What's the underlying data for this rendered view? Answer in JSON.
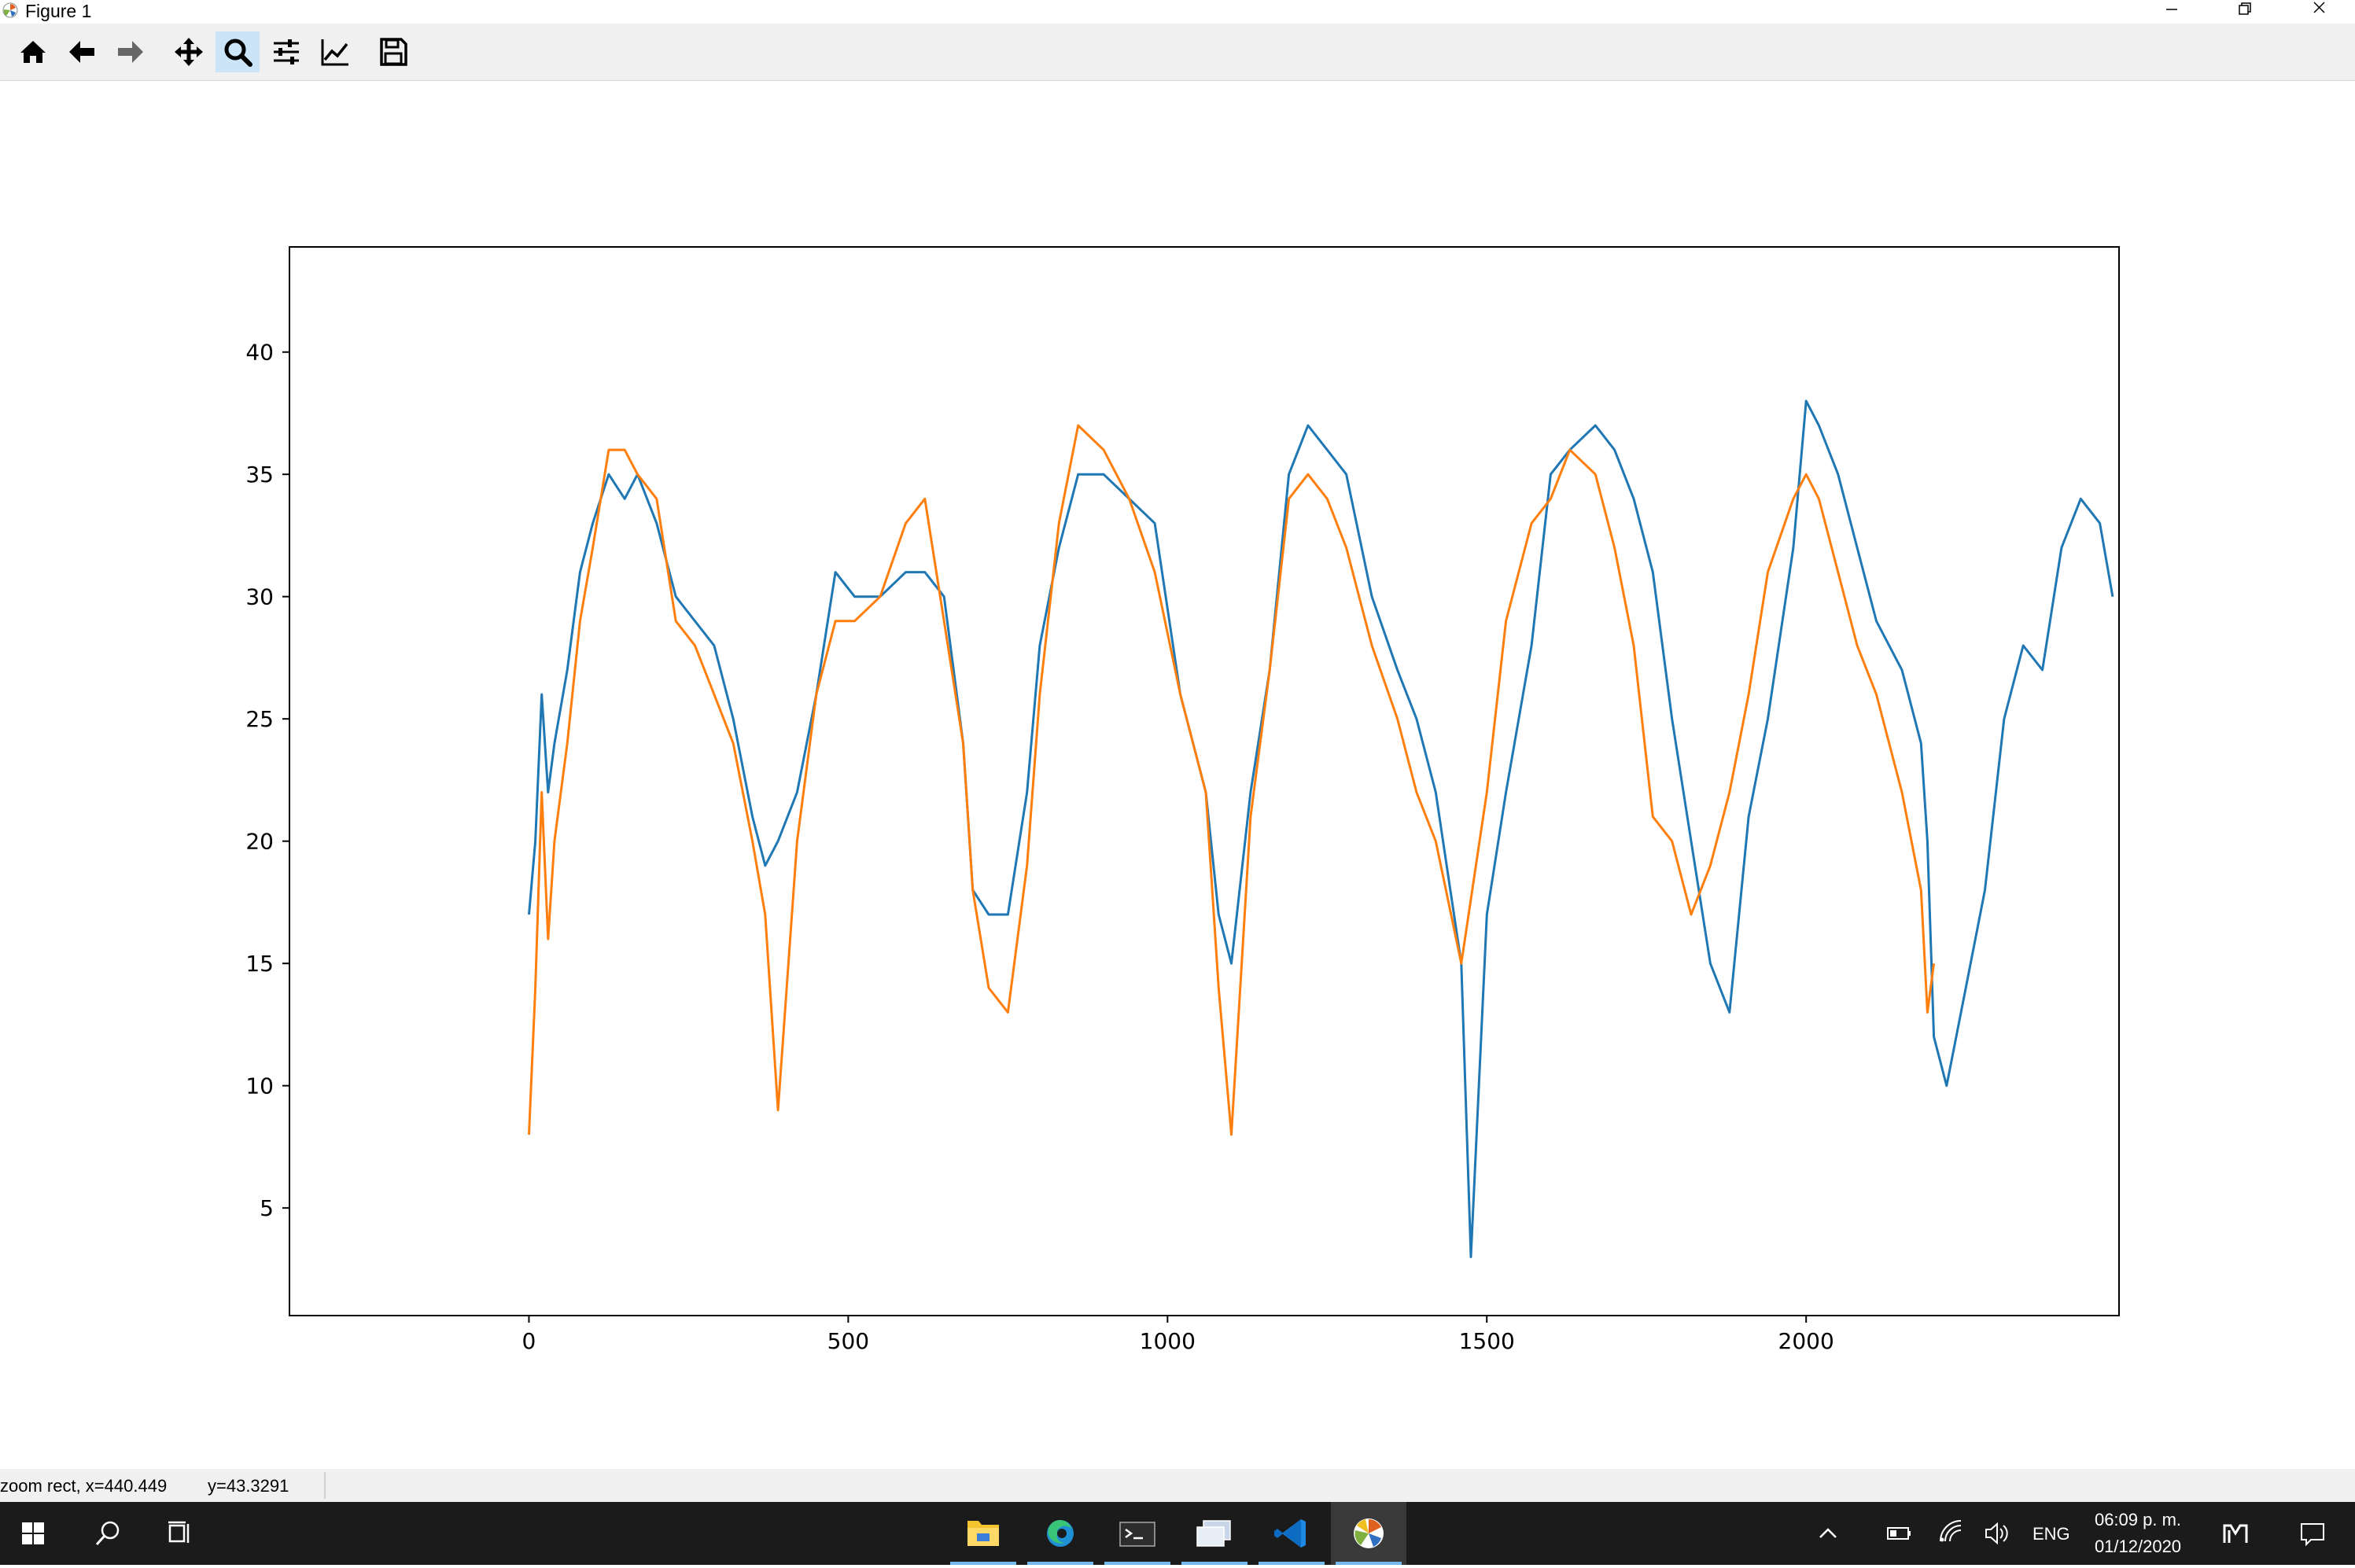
{
  "window": {
    "title": "Figure 1",
    "controls": [
      "minimize",
      "restore",
      "close"
    ]
  },
  "toolbar": {
    "buttons": [
      {
        "name": "home",
        "icon": "home-icon"
      },
      {
        "name": "back",
        "icon": "arrow-left-icon"
      },
      {
        "name": "forward",
        "icon": "arrow-right-icon"
      },
      {
        "name": "pan",
        "icon": "move-icon"
      },
      {
        "name": "zoom",
        "icon": "magnifier-icon",
        "active": true
      },
      {
        "name": "configure-subplots",
        "icon": "sliders-icon"
      },
      {
        "name": "edit-axis",
        "icon": "line-chart-icon"
      },
      {
        "name": "save",
        "icon": "floppy-disk-icon"
      }
    ]
  },
  "status": {
    "mode_x": "zoom rect, x=440.449",
    "y": "y=43.3291"
  },
  "chart_data": {
    "type": "line",
    "title": "",
    "xlabel": "",
    "ylabel": "",
    "xlim": [
      -375,
      2490
    ],
    "ylim": [
      0.6,
      44.3
    ],
    "xticks": [
      0,
      500,
      1000,
      1500,
      2000
    ],
    "yticks": [
      5,
      10,
      15,
      20,
      25,
      30,
      35,
      40
    ],
    "grid": false,
    "legend": "none",
    "series": [
      {
        "color": "#1f77b4",
        "x": [
          0,
          10,
          20,
          30,
          40,
          60,
          80,
          100,
          125,
          150,
          170,
          200,
          230,
          260,
          290,
          320,
          350,
          370,
          390,
          420,
          450,
          480,
          510,
          550,
          590,
          620,
          650,
          680,
          695,
          720,
          750,
          780,
          800,
          830,
          860,
          900,
          940,
          980,
          1020,
          1060,
          1080,
          1100,
          1130,
          1160,
          1190,
          1220,
          1250,
          1280,
          1320,
          1360,
          1390,
          1420,
          1460,
          1475,
          1500,
          1530,
          1570,
          1600,
          1630,
          1670,
          1700,
          1730,
          1760,
          1790,
          1820,
          1850,
          1880,
          1910,
          1940,
          1980,
          2000,
          2020,
          2050,
          2080,
          2110,
          2150,
          2180,
          2190,
          2200,
          2220,
          2250,
          2280,
          2310,
          2340,
          2370,
          2400,
          2430,
          2460,
          2480
        ],
        "y": [
          17,
          20,
          26,
          22,
          24,
          27,
          31,
          33,
          35,
          34,
          35,
          33,
          30,
          29,
          28,
          25,
          21,
          19,
          20,
          22,
          26,
          31,
          30,
          30,
          31,
          31,
          30,
          24,
          18,
          17,
          17,
          22,
          28,
          32,
          35,
          35,
          34,
          33,
          26,
          22,
          17,
          15,
          22,
          27,
          35,
          37,
          36,
          35,
          30,
          27,
          25,
          22,
          15,
          3,
          17,
          22,
          28,
          35,
          36,
          37,
          36,
          34,
          31,
          25,
          20,
          15,
          13,
          21,
          25,
          32,
          38,
          37,
          35,
          32,
          29,
          27,
          24,
          20,
          12,
          10,
          14,
          18,
          25,
          28,
          27,
          32,
          34,
          33,
          30
        ]
      },
      {
        "color": "#ff7f0e",
        "x": [
          0,
          10,
          20,
          30,
          40,
          60,
          80,
          100,
          125,
          150,
          170,
          200,
          230,
          260,
          290,
          320,
          350,
          370,
          390,
          420,
          450,
          480,
          510,
          550,
          590,
          620,
          650,
          680,
          695,
          720,
          750,
          780,
          800,
          830,
          860,
          900,
          940,
          980,
          1020,
          1060,
          1080,
          1100,
          1130,
          1160,
          1190,
          1220,
          1250,
          1280,
          1320,
          1360,
          1390,
          1420,
          1460,
          1500,
          1530,
          1570,
          1600,
          1630,
          1670,
          1700,
          1730,
          1760,
          1790,
          1820,
          1850,
          1880,
          1910,
          1940,
          1980,
          2000,
          2020,
          2050,
          2080,
          2110,
          2150,
          2180,
          2190,
          2200
        ],
        "y": [
          8,
          14,
          22,
          16,
          20,
          24,
          29,
          32,
          36,
          36,
          35,
          34,
          29,
          28,
          26,
          24,
          20,
          17,
          9,
          20,
          26,
          29,
          29,
          30,
          33,
          34,
          29,
          24,
          18,
          14,
          13,
          19,
          26,
          33,
          37,
          36,
          34,
          31,
          26,
          22,
          14,
          8,
          21,
          27,
          34,
          35,
          34,
          32,
          28,
          25,
          22,
          20,
          15,
          22,
          29,
          33,
          34,
          36,
          35,
          32,
          28,
          21,
          20,
          17,
          19,
          22,
          26,
          31,
          34,
          35,
          34,
          31,
          28,
          26,
          22,
          18,
          13,
          15
        ]
      }
    ]
  },
  "taskbar": {
    "apps": [
      {
        "name": "file-explorer",
        "icon": "folder-icon"
      },
      {
        "name": "edge",
        "icon": "edge-icon"
      },
      {
        "name": "terminal",
        "icon": "terminal-icon"
      },
      {
        "name": "devices",
        "icon": "window-stack-icon"
      },
      {
        "name": "vscode",
        "icon": "vscode-icon"
      },
      {
        "name": "matplotlib-figure",
        "icon": "matplotlib-icon",
        "active": true
      }
    ],
    "tray": {
      "language": "ENG",
      "time": "06:09 p. m.",
      "date": "01/12/2020"
    }
  }
}
